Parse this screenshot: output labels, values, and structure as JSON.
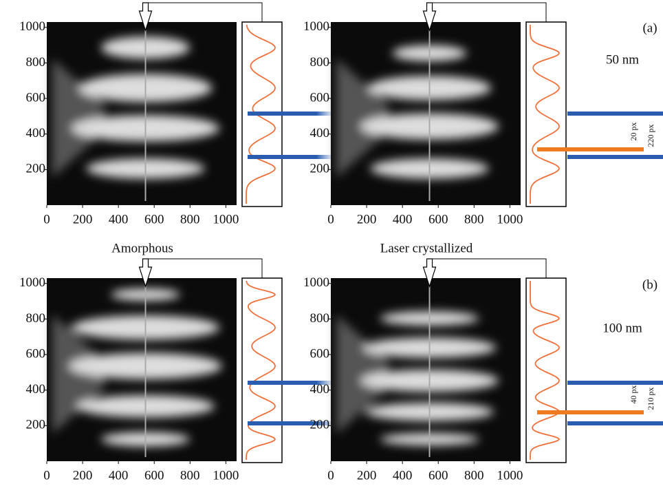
{
  "chart_data": [
    {
      "type": "image",
      "xlim": [
        0,
        1060
      ],
      "ylim": [
        0,
        1030
      ],
      "xticks": [
        0,
        200,
        400,
        600,
        800,
        1000
      ],
      "yticks": [
        200,
        400,
        600,
        800,
        1000
      ]
    },
    {
      "type": "image",
      "xlim": [
        0,
        1060
      ],
      "ylim": [
        0,
        1030
      ],
      "xticks": [
        0,
        200,
        400,
        600,
        800,
        1000
      ],
      "yticks": [
        200,
        400,
        600,
        800,
        1000
      ]
    },
    {
      "type": "image",
      "xlim": [
        0,
        1060
      ],
      "ylim": [
        0,
        1030
      ],
      "xticks": [
        0,
        200,
        400,
        600,
        800,
        1000
      ],
      "yticks": [
        200,
        400,
        600,
        800,
        1000
      ]
    },
    {
      "type": "image",
      "xlim": [
        0,
        1060
      ],
      "ylim": [
        0,
        1030
      ],
      "xticks": [
        0,
        200,
        400,
        600,
        800,
        1000
      ],
      "yticks": [
        200,
        400,
        600,
        800,
        1000
      ]
    }
  ],
  "annotations": {
    "panel_a": "(a)",
    "panel_b": "(b)",
    "thickness_a": "50 nm",
    "thickness_b": "100 nm",
    "amorphous": "Amorphous",
    "crystallized": "Laser crystallized",
    "width_a": "20 px",
    "period_a": "220 px",
    "width_b": "40 px",
    "period_b": "210 px"
  }
}
